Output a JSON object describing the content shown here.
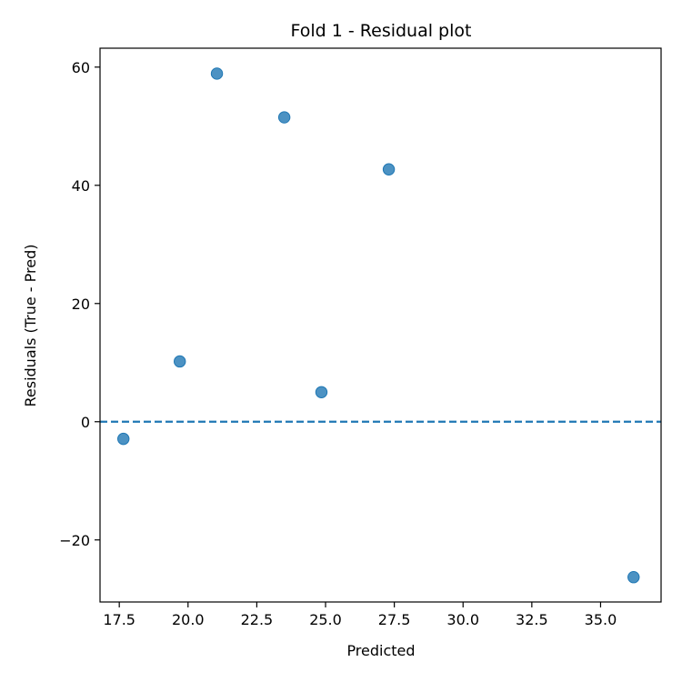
{
  "chart_data": {
    "type": "scatter",
    "title": "Fold 1 - Residual plot",
    "xlabel": "Predicted",
    "ylabel": "Residuals (True - Pred)",
    "xlim": [
      16.8,
      37.2
    ],
    "ylim": [
      -30.5,
      63.2
    ],
    "xticks": [
      17.5,
      20.0,
      22.5,
      25.0,
      27.5,
      30.0,
      32.5,
      35.0
    ],
    "xtick_labels": [
      "17.5",
      "20.0",
      "22.5",
      "25.0",
      "27.5",
      "30.0",
      "32.5",
      "35.0"
    ],
    "yticks": [
      -20,
      0,
      20,
      40,
      60
    ],
    "ytick_labels": [
      "−20",
      "0",
      "20",
      "40",
      "60"
    ],
    "reference_line": {
      "y": 0,
      "style": "dashed",
      "color": "#1f77b4"
    },
    "point_color": "#1f77b4",
    "grid": false,
    "points": [
      {
        "x": 17.65,
        "y": -2.9
      },
      {
        "x": 19.7,
        "y": 10.2
      },
      {
        "x": 21.05,
        "y": 58.9
      },
      {
        "x": 23.5,
        "y": 51.5
      },
      {
        "x": 24.85,
        "y": 5.0
      },
      {
        "x": 27.3,
        "y": 42.7
      },
      {
        "x": 36.2,
        "y": -26.3
      }
    ]
  }
}
